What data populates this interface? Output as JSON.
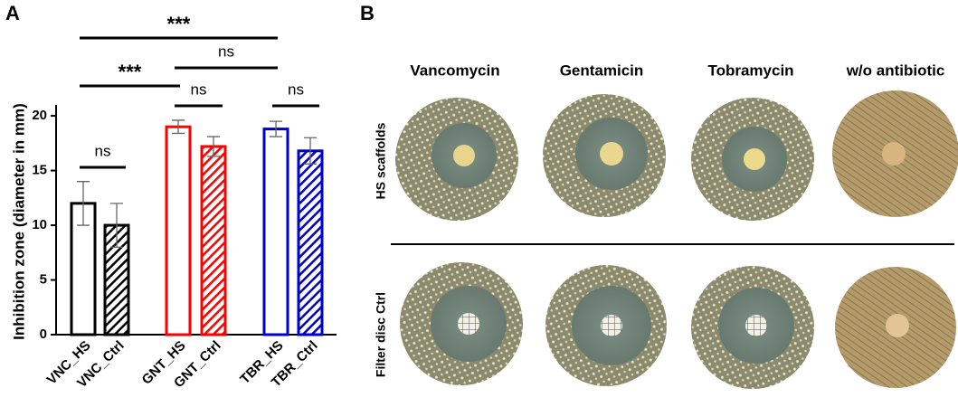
{
  "panel_labels": [
    "A",
    "B"
  ],
  "chart_data": {
    "type": "bar",
    "y_label": "Inhibition zone (diameter in mm)",
    "categories": [
      "VNC_HS",
      "VNC_Ctrl",
      "GNT_HS",
      "GNT_Ctrl",
      "TBR_HS",
      "TBR_Ctrl"
    ],
    "values": [
      12,
      10,
      19,
      17.2,
      18.8,
      16.8
    ],
    "errors": [
      2,
      2,
      0.6,
      0.9,
      0.7,
      1.2
    ],
    "colors": [
      "#000000",
      "#000000",
      "#ff0000",
      "#ff0000",
      "#0000cc",
      "#0000cc"
    ],
    "fill_styles": [
      "open",
      "hatched",
      "open",
      "hatched",
      "open",
      "hatched"
    ],
    "error_color": "#666666",
    "ylim": [
      0,
      21
    ],
    "yticks": [
      0,
      5,
      10,
      15,
      20
    ],
    "annotations": [
      {
        "label": "***",
        "from": 0,
        "to": 4
      },
      {
        "label": "ns",
        "from": 2,
        "to": 4
      },
      {
        "label": "***",
        "from": 0,
        "to": 2
      },
      {
        "label": "ns",
        "from": 2,
        "to": 3
      },
      {
        "label": "ns",
        "from": 4,
        "to": 5
      },
      {
        "label": "ns",
        "from": 0,
        "to": 1
      }
    ]
  },
  "panel_b": {
    "columns": [
      "Vancomycin",
      "Gentamicin",
      "Tobramycin",
      "w/o antibiotic"
    ],
    "rows": [
      "HS scaffolds",
      "Filter disc Ctrl"
    ]
  }
}
